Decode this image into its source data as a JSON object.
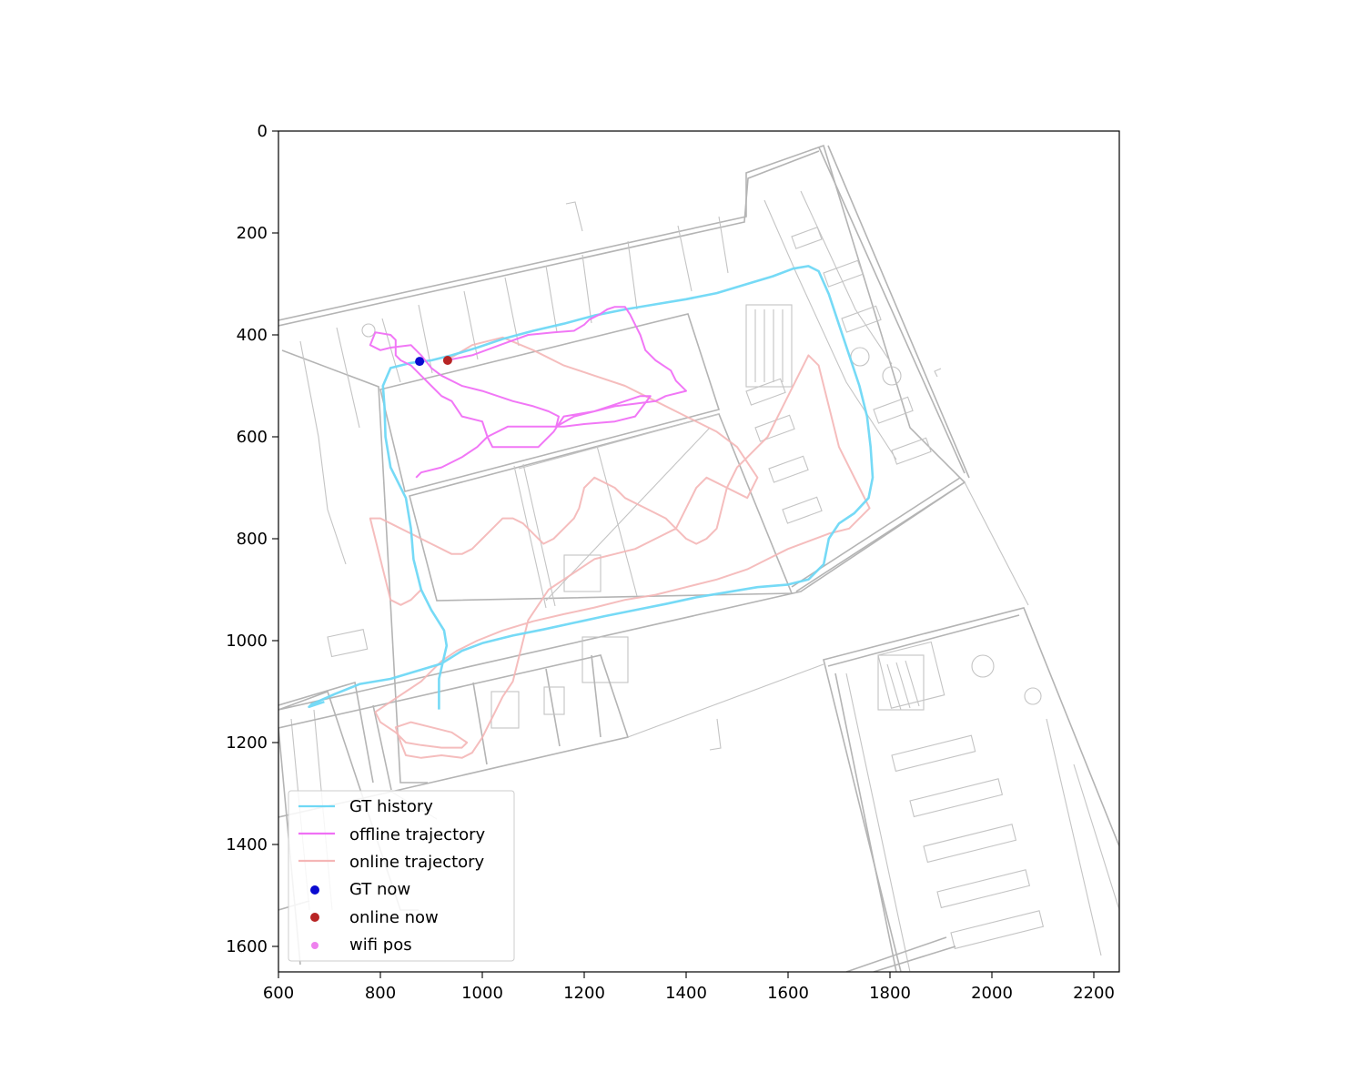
{
  "chart_data": {
    "type": "line",
    "title": "",
    "xlabel": "",
    "ylabel": "",
    "xlim": [
      600,
      2250
    ],
    "ylim": [
      1650,
      0
    ],
    "y_inverted": true,
    "grid": false,
    "background": "floor-plan-image",
    "xticks": [
      600,
      800,
      1000,
      1200,
      1400,
      1600,
      1800,
      2000,
      2200
    ],
    "yticks": [
      0,
      200,
      400,
      600,
      800,
      1000,
      1200,
      1400,
      1600
    ],
    "legend_position": "lower-left",
    "series": [
      {
        "name": "GT history",
        "kind": "line",
        "color": "#6fd8f5",
        "points": [
          [
            915,
            1135
          ],
          [
            915,
            1075
          ],
          [
            930,
            1010
          ],
          [
            925,
            980
          ],
          [
            900,
            940
          ],
          [
            880,
            900
          ],
          [
            865,
            840
          ],
          [
            860,
            780
          ],
          [
            850,
            720
          ],
          [
            820,
            660
          ],
          [
            810,
            600
          ],
          [
            808,
            540
          ],
          [
            805,
            500
          ],
          [
            820,
            465
          ],
          [
            860,
            455
          ],
          [
            900,
            450
          ],
          [
            940,
            440
          ],
          [
            990,
            425
          ],
          [
            1040,
            408
          ],
          [
            1100,
            392
          ],
          [
            1160,
            378
          ],
          [
            1220,
            362
          ],
          [
            1280,
            350
          ],
          [
            1340,
            340
          ],
          [
            1400,
            330
          ],
          [
            1460,
            318
          ],
          [
            1520,
            300
          ],
          [
            1570,
            285
          ],
          [
            1610,
            270
          ],
          [
            1640,
            265
          ],
          [
            1660,
            275
          ],
          [
            1680,
            320
          ],
          [
            1700,
            380
          ],
          [
            1720,
            440
          ],
          [
            1740,
            500
          ],
          [
            1755,
            560
          ],
          [
            1762,
            620
          ],
          [
            1766,
            680
          ],
          [
            1758,
            720
          ],
          [
            1730,
            750
          ],
          [
            1700,
            770
          ],
          [
            1680,
            800
          ],
          [
            1670,
            850
          ],
          [
            1640,
            880
          ],
          [
            1600,
            890
          ],
          [
            1540,
            895
          ],
          [
            1480,
            905
          ],
          [
            1420,
            915
          ],
          [
            1360,
            928
          ],
          [
            1300,
            940
          ],
          [
            1240,
            952
          ],
          [
            1180,
            965
          ],
          [
            1120,
            978
          ],
          [
            1060,
            990
          ],
          [
            1000,
            1005
          ],
          [
            960,
            1020
          ],
          [
            920,
            1045
          ],
          [
            870,
            1060
          ],
          [
            820,
            1075
          ],
          [
            760,
            1085
          ],
          [
            710,
            1105
          ],
          [
            665,
            1125
          ],
          [
            660,
            1130
          ],
          [
            690,
            1120
          ]
        ]
      },
      {
        "name": "offline trajectory",
        "kind": "line",
        "color": "#f070f5",
        "points": [
          [
            930,
            450
          ],
          [
            980,
            440
          ],
          [
            1040,
            418
          ],
          [
            1090,
            400
          ],
          [
            1140,
            395
          ],
          [
            1180,
            392
          ],
          [
            1200,
            380
          ],
          [
            1210,
            370
          ],
          [
            1230,
            360
          ],
          [
            1245,
            350
          ],
          [
            1260,
            345
          ],
          [
            1280,
            345
          ],
          [
            1290,
            360
          ],
          [
            1300,
            380
          ],
          [
            1310,
            400
          ],
          [
            1320,
            430
          ],
          [
            1340,
            450
          ],
          [
            1370,
            470
          ],
          [
            1380,
            490
          ],
          [
            1400,
            510
          ],
          [
            1360,
            520
          ],
          [
            1340,
            530
          ],
          [
            1300,
            535
          ],
          [
            1260,
            540
          ],
          [
            1220,
            550
          ],
          [
            1160,
            560
          ],
          [
            1140,
            590
          ],
          [
            1110,
            620
          ],
          [
            1060,
            620
          ],
          [
            1020,
            620
          ],
          [
            1010,
            600
          ],
          [
            1000,
            570
          ],
          [
            960,
            560
          ],
          [
            940,
            530
          ],
          [
            920,
            520
          ],
          [
            900,
            500
          ],
          [
            880,
            480
          ],
          [
            860,
            460
          ],
          [
            840,
            450
          ],
          [
            830,
            440
          ],
          [
            830,
            410
          ],
          [
            820,
            400
          ],
          [
            790,
            395
          ],
          [
            780,
            420
          ],
          [
            800,
            430
          ],
          [
            820,
            425
          ],
          [
            860,
            420
          ],
          [
            880,
            440
          ],
          [
            900,
            465
          ],
          [
            920,
            480
          ],
          [
            960,
            500
          ],
          [
            1000,
            510
          ],
          [
            1030,
            520
          ],
          [
            1060,
            530
          ],
          [
            1100,
            540
          ],
          [
            1130,
            550
          ],
          [
            1150,
            560
          ],
          [
            1145,
            580
          ],
          [
            1180,
            560
          ],
          [
            1220,
            550
          ],
          [
            1250,
            540
          ],
          [
            1280,
            530
          ],
          [
            1310,
            520
          ],
          [
            1330,
            520
          ],
          [
            1300,
            560
          ],
          [
            1260,
            570
          ],
          [
            1200,
            575
          ],
          [
            1160,
            580
          ],
          [
            1100,
            580
          ],
          [
            1050,
            580
          ],
          [
            1010,
            600
          ],
          [
            990,
            620
          ],
          [
            960,
            640
          ],
          [
            940,
            650
          ],
          [
            920,
            660
          ],
          [
            880,
            670
          ],
          [
            870,
            680
          ]
        ]
      },
      {
        "name": "online trajectory",
        "kind": "line",
        "color": "#f4b6b6",
        "points": [
          [
            930,
            450
          ],
          [
            980,
            420
          ],
          [
            1040,
            405
          ],
          [
            1100,
            430
          ],
          [
            1160,
            460
          ],
          [
            1220,
            480
          ],
          [
            1280,
            500
          ],
          [
            1340,
            530
          ],
          [
            1400,
            560
          ],
          [
            1460,
            590
          ],
          [
            1500,
            620
          ],
          [
            1540,
            680
          ],
          [
            1520,
            720
          ],
          [
            1480,
            700
          ],
          [
            1440,
            680
          ],
          [
            1420,
            700
          ],
          [
            1400,
            740
          ],
          [
            1380,
            780
          ],
          [
            1340,
            800
          ],
          [
            1300,
            820
          ],
          [
            1260,
            830
          ],
          [
            1220,
            840
          ],
          [
            1190,
            860
          ],
          [
            1160,
            880
          ],
          [
            1130,
            900
          ],
          [
            1110,
            930
          ],
          [
            1090,
            960
          ],
          [
            1080,
            1000
          ],
          [
            1070,
            1040
          ],
          [
            1060,
            1080
          ],
          [
            1040,
            1110
          ],
          [
            1020,
            1150
          ],
          [
            1000,
            1190
          ],
          [
            980,
            1220
          ],
          [
            960,
            1230
          ],
          [
            920,
            1225
          ],
          [
            880,
            1230
          ],
          [
            850,
            1225
          ],
          [
            840,
            1200
          ],
          [
            830,
            1170
          ],
          [
            860,
            1160
          ],
          [
            900,
            1170
          ],
          [
            940,
            1180
          ],
          [
            970,
            1200
          ],
          [
            960,
            1210
          ],
          [
            920,
            1210
          ],
          [
            880,
            1205
          ],
          [
            850,
            1200
          ],
          [
            830,
            1180
          ],
          [
            800,
            1160
          ],
          [
            790,
            1140
          ],
          [
            820,
            1120
          ],
          [
            850,
            1100
          ],
          [
            880,
            1080
          ],
          [
            900,
            1060
          ],
          [
            920,
            1040
          ],
          [
            950,
            1020
          ],
          [
            990,
            1000
          ],
          [
            1040,
            980
          ],
          [
            1100,
            962
          ],
          [
            1160,
            948
          ],
          [
            1220,
            935
          ],
          [
            1280,
            920
          ],
          [
            1340,
            910
          ],
          [
            1400,
            895
          ],
          [
            1460,
            880
          ],
          [
            1520,
            860
          ],
          [
            1560,
            840
          ],
          [
            1600,
            820
          ],
          [
            1640,
            805
          ],
          [
            1680,
            790
          ],
          [
            1720,
            780
          ],
          [
            1740,
            760
          ],
          [
            1760,
            740
          ],
          [
            1740,
            700
          ],
          [
            1720,
            660
          ],
          [
            1700,
            620
          ],
          [
            1690,
            580
          ],
          [
            1680,
            540
          ],
          [
            1670,
            500
          ],
          [
            1660,
            460
          ],
          [
            1640,
            440
          ],
          [
            1620,
            480
          ],
          [
            1600,
            520
          ],
          [
            1580,
            560
          ],
          [
            1560,
            600
          ],
          [
            1540,
            620
          ],
          [
            1520,
            640
          ],
          [
            1500,
            660
          ],
          [
            1480,
            700
          ],
          [
            1470,
            740
          ],
          [
            1460,
            780
          ],
          [
            1440,
            800
          ],
          [
            1420,
            810
          ],
          [
            1400,
            800
          ],
          [
            1380,
            780
          ],
          [
            1360,
            760
          ],
          [
            1320,
            740
          ],
          [
            1300,
            730
          ],
          [
            1280,
            720
          ],
          [
            1260,
            700
          ],
          [
            1240,
            690
          ],
          [
            1220,
            680
          ],
          [
            1200,
            700
          ],
          [
            1190,
            740
          ],
          [
            1180,
            760
          ],
          [
            1160,
            780
          ],
          [
            1140,
            800
          ],
          [
            1120,
            810
          ],
          [
            1100,
            790
          ],
          [
            1080,
            770
          ],
          [
            1060,
            760
          ],
          [
            1040,
            760
          ],
          [
            1020,
            780
          ],
          [
            1000,
            800
          ],
          [
            980,
            820
          ],
          [
            960,
            830
          ],
          [
            940,
            830
          ],
          [
            920,
            820
          ],
          [
            900,
            810
          ],
          [
            880,
            800
          ],
          [
            860,
            790
          ],
          [
            840,
            780
          ],
          [
            820,
            770
          ],
          [
            800,
            760
          ],
          [
            780,
            760
          ],
          [
            790,
            800
          ],
          [
            800,
            840
          ],
          [
            810,
            880
          ],
          [
            820,
            920
          ],
          [
            840,
            930
          ],
          [
            860,
            920
          ],
          [
            880,
            900
          ]
        ]
      },
      {
        "name": "GT now",
        "kind": "scatter",
        "color": "#0a0ad0",
        "points": [
          [
            877,
            452
          ]
        ]
      },
      {
        "name": "online now",
        "kind": "scatter",
        "color": "#b82424",
        "points": [
          [
            932,
            450
          ]
        ]
      },
      {
        "name": "wifi pos",
        "kind": "scatter",
        "color": "#ee82ee",
        "points": [
          [
            877,
            452
          ]
        ]
      }
    ]
  }
}
